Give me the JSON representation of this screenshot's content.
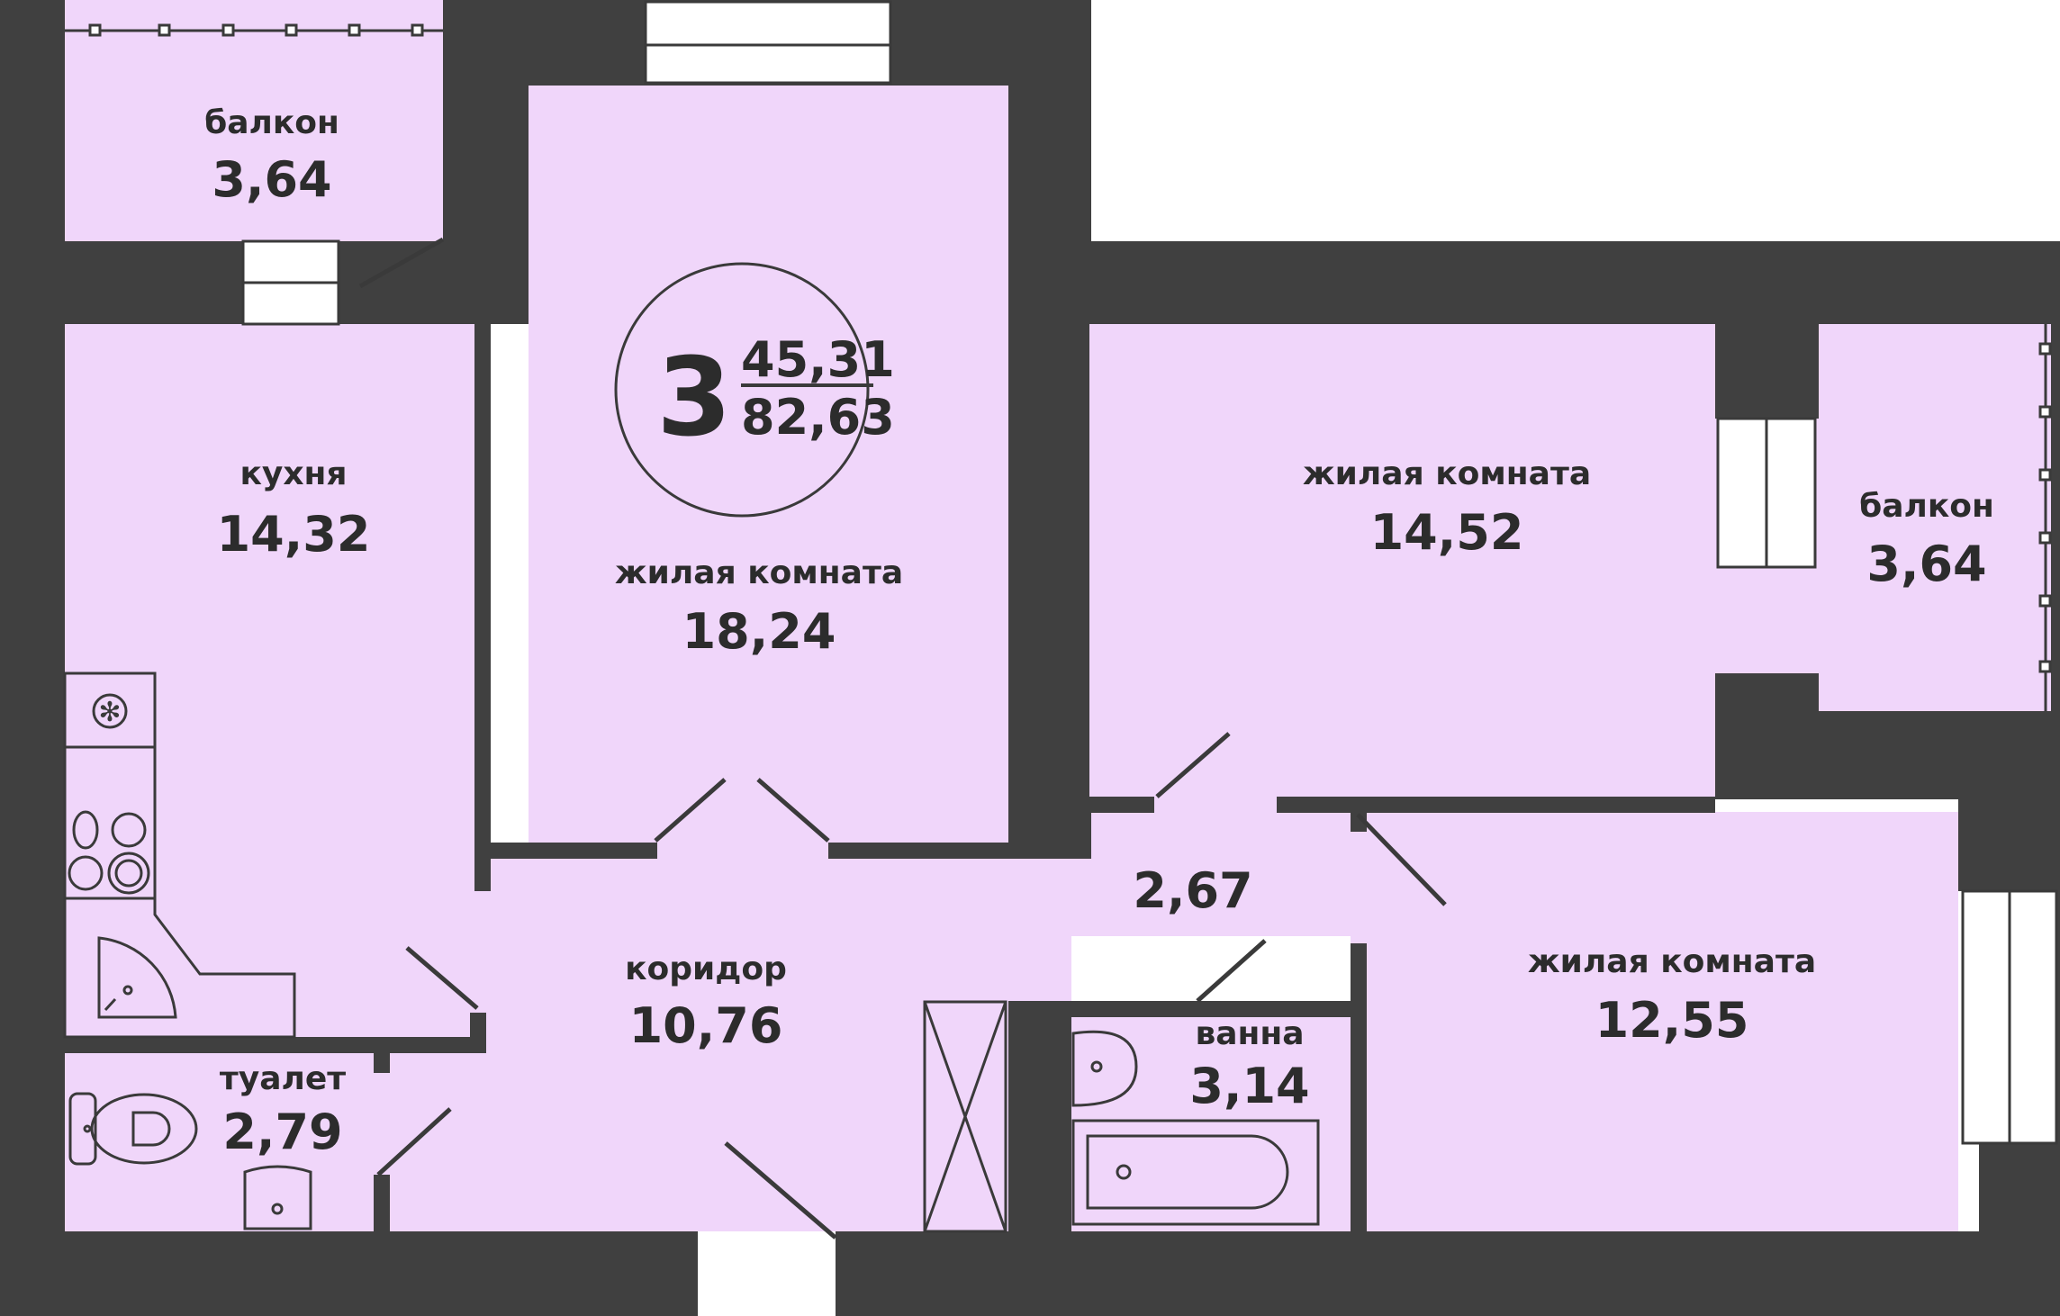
{
  "badge": {
    "rooms": "3",
    "living_area": "45,31",
    "total_area": "82,63"
  },
  "rooms": {
    "balcony_top": {
      "name": "балкон",
      "area": "3,64"
    },
    "kitchen": {
      "name": "кухня",
      "area": "14,32"
    },
    "living_center": {
      "name": "жилая комната",
      "area": "18,24"
    },
    "living_upper_right": {
      "name": "жилая комната",
      "area": "14,52"
    },
    "balcony_right": {
      "name": "балкон",
      "area": "3,64"
    },
    "hall": {
      "area": "2,67"
    },
    "corridor": {
      "name": "коридор",
      "area": "10,76"
    },
    "toilet": {
      "name": "туалет",
      "area": "2,79"
    },
    "bathroom": {
      "name": "ванна",
      "area": "3,14"
    },
    "living_lower_right": {
      "name": "жилая комната",
      "area": "12,55"
    }
  },
  "colors": {
    "wall": "#404040",
    "floor": "#f0d6fa",
    "line": "#3a3a3a",
    "background": "#ffffff"
  }
}
